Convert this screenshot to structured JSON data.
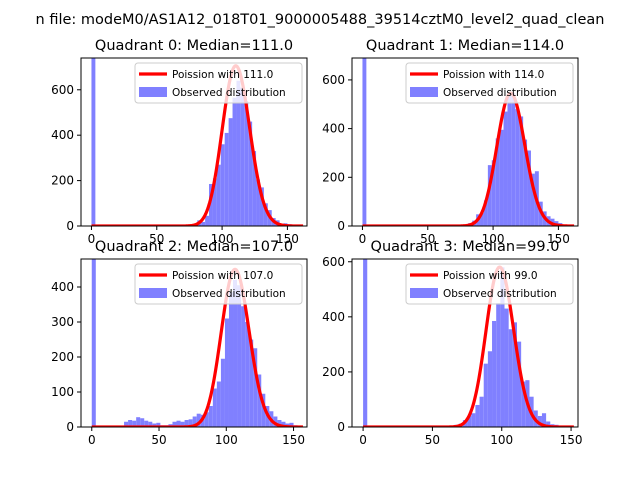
{
  "figure": {
    "suptitle": "n file: modeM0/AS1A12_018T01_9000005488_39514cztM0_level2_quad_clean"
  },
  "colors": {
    "histogram": "#8080ff",
    "poisson": "#ff0000",
    "axes": "#000000"
  },
  "chart_data": [
    {
      "type": "bar",
      "title": "Quadrant 0: Median=111.0",
      "xlim": [
        -8,
        165
      ],
      "ylim": [
        0,
        740
      ],
      "xticks": [
        0,
        50,
        100,
        150
      ],
      "yticks": [
        0,
        200,
        400,
        600
      ],
      "poisson_mean": 111.0,
      "poisson_peak": 705,
      "legend": {
        "placement": "upper right",
        "entries": [
          "Poission with 111.0",
          "Observed distribution"
        ]
      },
      "bin_width": 3,
      "histogram": [
        [
          0,
          740
        ],
        [
          78,
          5
        ],
        [
          81,
          25
        ],
        [
          84,
          18
        ],
        [
          87,
          45
        ],
        [
          90,
          185
        ],
        [
          93,
          210
        ],
        [
          96,
          270
        ],
        [
          99,
          360
        ],
        [
          102,
          410
        ],
        [
          105,
          475
        ],
        [
          108,
          565
        ],
        [
          111,
          640
        ],
        [
          114,
          610
        ],
        [
          117,
          550
        ],
        [
          120,
          460
        ],
        [
          123,
          330
        ],
        [
          126,
          205
        ],
        [
          129,
          170
        ],
        [
          132,
          100
        ],
        [
          135,
          70
        ],
        [
          138,
          35
        ],
        [
          141,
          25
        ],
        [
          144,
          10
        ],
        [
          147,
          12
        ],
        [
          150,
          8
        ],
        [
          153,
          5
        ]
      ]
    },
    {
      "type": "bar",
      "title": "Quadrant 1: Median=114.0",
      "xlim": [
        -8,
        165
      ],
      "ylim": [
        0,
        690
      ],
      "xticks": [
        0,
        50,
        100,
        150
      ],
      "yticks": [
        0,
        200,
        400,
        600
      ],
      "poisson_mean": 114.0,
      "poisson_peak": 545,
      "legend": {
        "placement": "upper right",
        "entries": [
          "Poission with 114.0",
          "Observed distribution"
        ]
      },
      "bin_width": 3,
      "histogram": [
        [
          0,
          690
        ],
        [
          72,
          3
        ],
        [
          75,
          6
        ],
        [
          78,
          5
        ],
        [
          81,
          12
        ],
        [
          84,
          22
        ],
        [
          87,
          48
        ],
        [
          90,
          55
        ],
        [
          93,
          105
        ],
        [
          96,
          250
        ],
        [
          99,
          270
        ],
        [
          102,
          360
        ],
        [
          105,
          395
        ],
        [
          108,
          470
        ],
        [
          111,
          535
        ],
        [
          114,
          545
        ],
        [
          117,
          480
        ],
        [
          120,
          450
        ],
        [
          123,
          355
        ],
        [
          126,
          310
        ],
        [
          129,
          215
        ],
        [
          132,
          225
        ],
        [
          135,
          100
        ],
        [
          138,
          60
        ],
        [
          141,
          40
        ],
        [
          144,
          30
        ],
        [
          147,
          20
        ],
        [
          150,
          12
        ],
        [
          153,
          5
        ]
      ]
    },
    {
      "type": "bar",
      "title": "Quadrant 2: Median=107.0",
      "xlim": [
        -8,
        160
      ],
      "ylim": [
        0,
        480
      ],
      "xticks": [
        0,
        50,
        100,
        150
      ],
      "yticks": [
        0,
        100,
        200,
        300,
        400
      ],
      "poisson_mean": 107.0,
      "poisson_peak": 450,
      "legend": {
        "placement": "upper right",
        "entries": [
          "Poission with 107.0",
          "Observed distribution"
        ]
      },
      "bin_width": 3,
      "histogram": [
        [
          0,
          480
        ],
        [
          24,
          15
        ],
        [
          27,
          20
        ],
        [
          30,
          18
        ],
        [
          33,
          28
        ],
        [
          36,
          25
        ],
        [
          39,
          18
        ],
        [
          42,
          15
        ],
        [
          45,
          10
        ],
        [
          48,
          12
        ],
        [
          51,
          5
        ],
        [
          54,
          5
        ],
        [
          57,
          8
        ],
        [
          60,
          15
        ],
        [
          63,
          18
        ],
        [
          66,
          15
        ],
        [
          69,
          20
        ],
        [
          72,
          22
        ],
        [
          75,
          30
        ],
        [
          78,
          38
        ],
        [
          81,
          35
        ],
        [
          84,
          42
        ],
        [
          87,
          60
        ],
        [
          90,
          110
        ],
        [
          93,
          130
        ],
        [
          96,
          195
        ],
        [
          99,
          310
        ],
        [
          102,
          385
        ],
        [
          105,
          420
        ],
        [
          108,
          405
        ],
        [
          111,
          345
        ],
        [
          114,
          300
        ],
        [
          117,
          250
        ],
        [
          120,
          225
        ],
        [
          123,
          150
        ],
        [
          126,
          95
        ],
        [
          129,
          60
        ],
        [
          132,
          45
        ],
        [
          135,
          30
        ],
        [
          138,
          20
        ],
        [
          141,
          15
        ],
        [
          144,
          10
        ],
        [
          147,
          12
        ],
        [
          150,
          5
        ]
      ]
    },
    {
      "type": "bar",
      "title": "Quadrant 3: Median=99.0",
      "xlim": [
        -8,
        155
      ],
      "ylim": [
        0,
        610
      ],
      "xticks": [
        0,
        50,
        100,
        150
      ],
      "yticks": [
        0,
        200,
        400,
        600
      ],
      "poisson_mean": 99.0,
      "poisson_peak": 580,
      "legend": {
        "placement": "upper right",
        "entries": [
          "Poission with 99.0",
          "Observed distribution"
        ]
      },
      "bin_width": 3,
      "histogram": [
        [
          0,
          610
        ],
        [
          63,
          5
        ],
        [
          66,
          8
        ],
        [
          69,
          12
        ],
        [
          72,
          25
        ],
        [
          75,
          40
        ],
        [
          78,
          50
        ],
        [
          81,
          80
        ],
        [
          84,
          110
        ],
        [
          87,
          230
        ],
        [
          90,
          275
        ],
        [
          93,
          385
        ],
        [
          96,
          450
        ],
        [
          99,
          580
        ],
        [
          102,
          430
        ],
        [
          105,
          355
        ],
        [
          108,
          380
        ],
        [
          111,
          310
        ],
        [
          114,
          165
        ],
        [
          117,
          170
        ],
        [
          120,
          110
        ],
        [
          123,
          60
        ],
        [
          126,
          40
        ],
        [
          129,
          50
        ],
        [
          132,
          20
        ],
        [
          135,
          10
        ],
        [
          138,
          8
        ],
        [
          141,
          4
        ]
      ]
    }
  ]
}
